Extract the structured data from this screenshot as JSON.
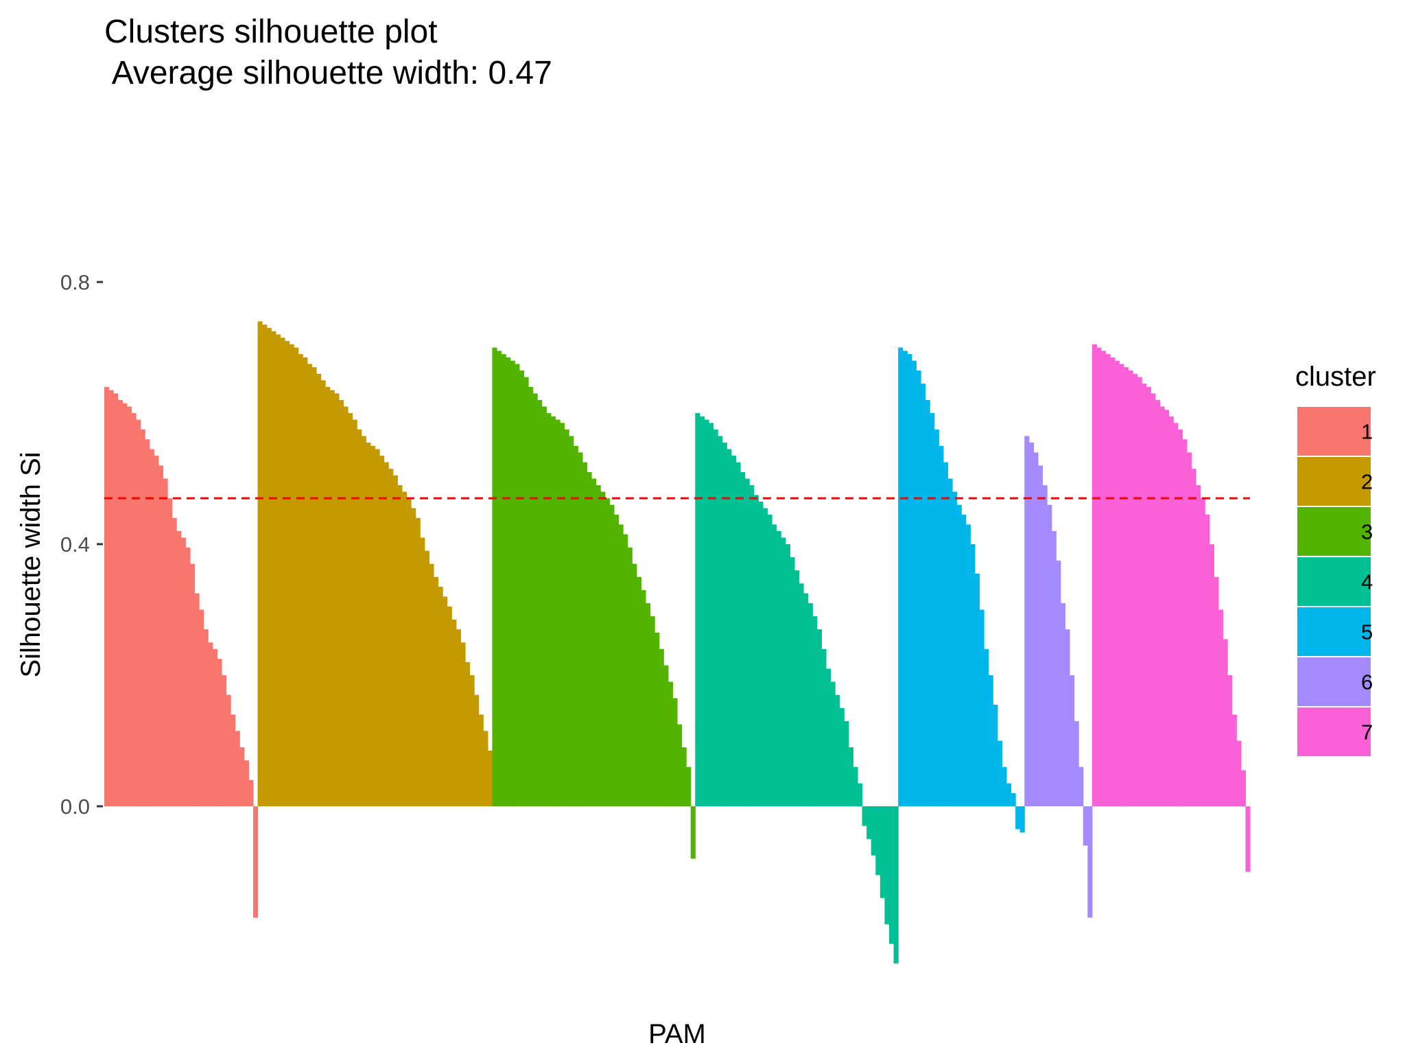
{
  "chart_data": {
    "type": "bar",
    "title": "Clusters silhouette plot",
    "subtitle": " Average silhouette width: 0.47",
    "xlabel": "PAM",
    "ylabel": "Silhouette width Si",
    "ylim": [
      -0.25,
      0.8
    ],
    "yticks": [
      0.0,
      0.4,
      0.8
    ],
    "ytick_labels": [
      "0.0",
      "0.4",
      "0.8"
    ],
    "average_silhouette_width": 0.47,
    "reference_line": {
      "y": 0.47,
      "color": "#ff0000",
      "style": "dashed"
    },
    "grid": false,
    "legend": {
      "title": "cluster",
      "position": "right"
    },
    "series": [
      {
        "name": "1",
        "color": "#f8766d",
        "values": [
          0.64,
          0.635,
          0.63,
          0.62,
          0.615,
          0.61,
          0.6,
          0.59,
          0.575,
          0.56,
          0.545,
          0.535,
          0.52,
          0.5,
          0.47,
          0.44,
          0.42,
          0.41,
          0.395,
          0.37,
          0.325,
          0.3,
          0.27,
          0.25,
          0.24,
          0.225,
          0.2,
          0.17,
          0.14,
          0.115,
          0.09,
          0.07,
          0.04,
          -0.17
        ]
      },
      {
        "name": "2",
        "color": "#c49a00",
        "values": [
          0.74,
          0.735,
          0.73,
          0.725,
          0.72,
          0.715,
          0.71,
          0.705,
          0.7,
          0.69,
          0.685,
          0.675,
          0.67,
          0.66,
          0.65,
          0.64,
          0.635,
          0.63,
          0.62,
          0.61,
          0.6,
          0.59,
          0.575,
          0.565,
          0.555,
          0.55,
          0.545,
          0.535,
          0.525,
          0.515,
          0.505,
          0.49,
          0.48,
          0.47,
          0.455,
          0.44,
          0.41,
          0.39,
          0.37,
          0.35,
          0.335,
          0.32,
          0.305,
          0.285,
          0.27,
          0.25,
          0.22,
          0.2,
          0.17,
          0.14,
          0.115,
          0.085
        ]
      },
      {
        "name": "3",
        "color": "#53b400",
        "values": [
          0.7,
          0.695,
          0.69,
          0.685,
          0.68,
          0.675,
          0.665,
          0.655,
          0.64,
          0.63,
          0.62,
          0.61,
          0.6,
          0.595,
          0.59,
          0.585,
          0.575,
          0.565,
          0.55,
          0.54,
          0.525,
          0.51,
          0.5,
          0.49,
          0.48,
          0.47,
          0.46,
          0.445,
          0.43,
          0.415,
          0.395,
          0.37,
          0.35,
          0.33,
          0.31,
          0.29,
          0.265,
          0.24,
          0.215,
          0.19,
          0.165,
          0.125,
          0.09,
          0.06,
          -0.08
        ]
      },
      {
        "name": "4",
        "color": "#00c094",
        "values": [
          0.6,
          0.595,
          0.59,
          0.585,
          0.575,
          0.565,
          0.555,
          0.545,
          0.535,
          0.525,
          0.51,
          0.5,
          0.49,
          0.475,
          0.465,
          0.455,
          0.445,
          0.43,
          0.42,
          0.41,
          0.4,
          0.38,
          0.36,
          0.34,
          0.325,
          0.31,
          0.29,
          0.27,
          0.24,
          0.21,
          0.19,
          0.17,
          0.15,
          0.13,
          0.09,
          0.06,
          0.035,
          -0.03,
          -0.05,
          -0.075,
          -0.105,
          -0.14,
          -0.18,
          -0.21,
          -0.24
        ]
      },
      {
        "name": "5",
        "color": "#00b6eb",
        "values": [
          0.7,
          0.695,
          0.69,
          0.68,
          0.665,
          0.645,
          0.62,
          0.6,
          0.575,
          0.55,
          0.525,
          0.5,
          0.48,
          0.46,
          0.445,
          0.43,
          0.4,
          0.355,
          0.3,
          0.24,
          0.2,
          0.155,
          0.1,
          0.06,
          0.035,
          0.02,
          -0.035,
          -0.04
        ]
      },
      {
        "name": "6",
        "color": "#a58aff",
        "values": [
          0.565,
          0.555,
          0.54,
          0.52,
          0.49,
          0.46,
          0.42,
          0.375,
          0.31,
          0.27,
          0.2,
          0.13,
          0.06,
          -0.06,
          -0.17
        ]
      },
      {
        "name": "7",
        "color": "#fb61d7",
        "values": [
          0.705,
          0.7,
          0.695,
          0.69,
          0.685,
          0.68,
          0.675,
          0.67,
          0.665,
          0.66,
          0.655,
          0.645,
          0.64,
          0.63,
          0.62,
          0.61,
          0.605,
          0.595,
          0.585,
          0.575,
          0.56,
          0.54,
          0.515,
          0.49,
          0.47,
          0.445,
          0.4,
          0.35,
          0.3,
          0.255,
          0.2,
          0.14,
          0.1,
          0.055,
          -0.1
        ]
      }
    ]
  }
}
